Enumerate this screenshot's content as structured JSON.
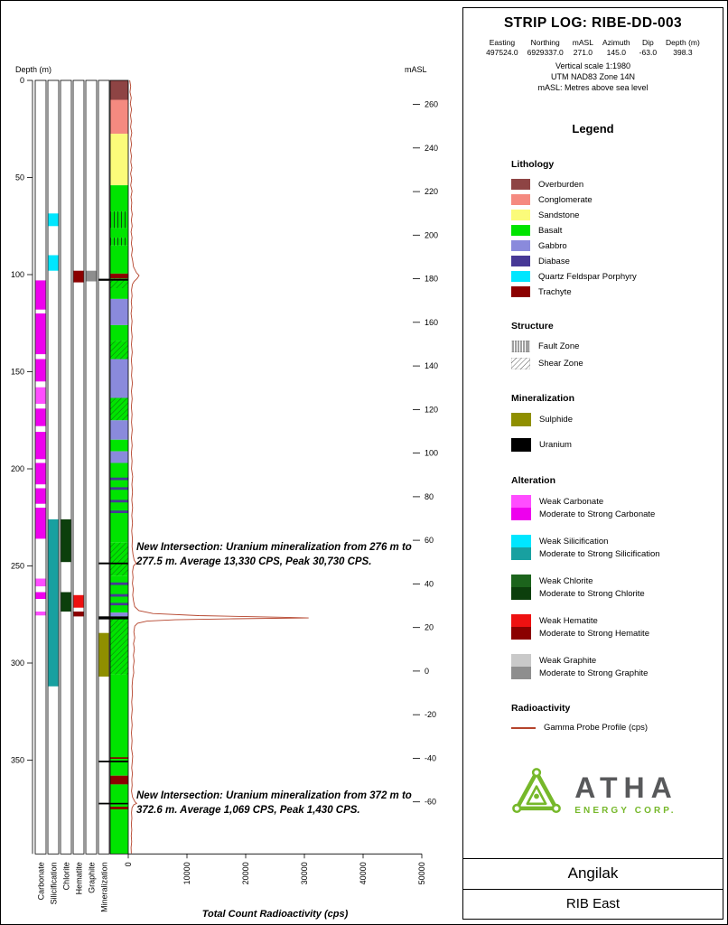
{
  "header": {
    "title": "STRIP LOG: RIBE-DD-003",
    "fields": [
      {
        "label": "Easting",
        "value": "497524.0"
      },
      {
        "label": "Northing",
        "value": "6929337.0"
      },
      {
        "label": "mASL",
        "value": "271.0"
      },
      {
        "label": "Azimuth",
        "value": "145.0"
      },
      {
        "label": "Dip",
        "value": "-63.0"
      },
      {
        "label": "Depth (m)",
        "value": "398.3"
      }
    ],
    "scale_note": "Vertical scale 1:1980",
    "utm_note": "UTM NAD83 Zone 14N",
    "masl_note": "mASL: Metres above sea level"
  },
  "legend": {
    "title": "Legend",
    "sections": {
      "lithology": {
        "heading": "Lithology",
        "items": [
          {
            "label": "Overburden",
            "color": "#8e4444"
          },
          {
            "label": "Conglomerate",
            "color": "#f58a80"
          },
          {
            "label": "Sandstone",
            "color": "#fbfb7a"
          },
          {
            "label": "Basalt",
            "color": "#00e400"
          },
          {
            "label": "Gabbro",
            "color": "#8a8adc"
          },
          {
            "label": "Diabase",
            "color": "#473896"
          },
          {
            "label": "Quartz Feldspar Porphyry",
            "color": "#00e6ff"
          },
          {
            "label": "Trachyte",
            "color": "#8b0000"
          }
        ]
      },
      "structure": {
        "heading": "Structure",
        "items": [
          {
            "label": "Fault Zone",
            "pattern": "fault"
          },
          {
            "label": "Shear Zone",
            "pattern": "shear"
          }
        ]
      },
      "mineralization": {
        "heading": "Mineralization",
        "items": [
          {
            "label": "Sulphide",
            "color": "#8f8f00"
          },
          {
            "label": "Uranium",
            "color": "#000000"
          }
        ]
      },
      "alteration": {
        "heading": "Alteration",
        "pairs": [
          {
            "name": "Carbonate",
            "weak_label": "Weak Carbonate",
            "strong_label": "Moderate to Strong Carbonate",
            "weak_color": "#ff4dff",
            "strong_color": "#ee00ee"
          },
          {
            "name": "Silicification",
            "weak_label": "Weak Silicification",
            "strong_label": "Moderate to Strong Silicification",
            "weak_color": "#00e6ff",
            "strong_color": "#18a0a0"
          },
          {
            "name": "Chlorite",
            "weak_label": "Weak Chlorite",
            "strong_label": "Moderate to Strong Chlorite",
            "weak_color": "#1c641c",
            "strong_color": "#0c3f0c"
          },
          {
            "name": "Hematite",
            "weak_label": "Weak Hematite",
            "strong_label": "Moderate to Strong Hematite",
            "weak_color": "#ee1111",
            "strong_color": "#8b0000"
          },
          {
            "name": "Graphite",
            "weak_label": "Weak Graphite",
            "strong_label": "Moderate to Strong Graphite",
            "weak_color": "#c9c9c9",
            "strong_color": "#8e8e8e"
          }
        ]
      },
      "radioactivity": {
        "heading": "Radioactivity",
        "items": [
          {
            "label": "Gamma Probe Profile (cps)",
            "line_color": "#b5442c"
          }
        ]
      }
    }
  },
  "logo": {
    "name": "ATHA",
    "subtitle": "ENERGY CORP.",
    "green": "#76b82a",
    "dark": "#58595b"
  },
  "footer": {
    "project": "Angilak",
    "area": "RIB East"
  },
  "chart_data": {
    "type": "strip_log",
    "depth_axis": {
      "label": "Depth (m)",
      "ticks": [
        0,
        50,
        100,
        150,
        200,
        250,
        300,
        350
      ],
      "max_depth": 398.3
    },
    "masl_axis": {
      "label": "mASL",
      "ticks": [
        260,
        240,
        220,
        200,
        180,
        160,
        140,
        120,
        100,
        80,
        60,
        40,
        20,
        0,
        -20,
        -40,
        -60
      ],
      "collar_masl": 271.0,
      "vertical_factor": 0.891
    },
    "cps_axis": {
      "label": "Total Count Radioactivity (cps)",
      "ticks": [
        0,
        10000,
        20000,
        30000,
        40000,
        50000
      ],
      "max": 50000
    },
    "columns": [
      "Carbonate",
      "Silicification",
      "Chlorite",
      "Hematite",
      "Graphite",
      "Mineralization"
    ],
    "lithology_intervals": [
      {
        "from": 0,
        "to": 10,
        "unit": "Overburden"
      },
      {
        "from": 10,
        "to": 27.5,
        "unit": "Conglomerate"
      },
      {
        "from": 27.5,
        "to": 54,
        "unit": "Sandstone"
      },
      {
        "from": 54,
        "to": 67.5,
        "unit": "Basalt"
      },
      {
        "from": 67.5,
        "to": 76,
        "unit": "Basalt",
        "structure": "fault"
      },
      {
        "from": 76,
        "to": 81,
        "unit": "Basalt"
      },
      {
        "from": 81,
        "to": 85,
        "unit": "Basalt",
        "structure": "fault"
      },
      {
        "from": 85,
        "to": 99.5,
        "unit": "Basalt"
      },
      {
        "from": 99.5,
        "to": 102,
        "unit": "Trachyte"
      },
      {
        "from": 102,
        "to": 107,
        "unit": "Basalt",
        "structure": "shear"
      },
      {
        "from": 107,
        "to": 112.5,
        "unit": "Basalt"
      },
      {
        "from": 112.5,
        "to": 126,
        "unit": "Gabbro"
      },
      {
        "from": 126,
        "to": 134,
        "unit": "Basalt"
      },
      {
        "from": 134,
        "to": 143.5,
        "unit": "Basalt",
        "structure": "shear"
      },
      {
        "from": 143.5,
        "to": 163.5,
        "unit": "Gabbro"
      },
      {
        "from": 163.5,
        "to": 175,
        "unit": "Basalt",
        "structure": "shear"
      },
      {
        "from": 175,
        "to": 185,
        "unit": "Gabbro"
      },
      {
        "from": 185,
        "to": 191,
        "unit": "Basalt"
      },
      {
        "from": 191,
        "to": 197,
        "unit": "Gabbro"
      },
      {
        "from": 197,
        "to": 238,
        "unit": "Basalt"
      },
      {
        "from": 238,
        "to": 255,
        "unit": "Basalt",
        "structure": "shear"
      },
      {
        "from": 255,
        "to": 274,
        "unit": "Basalt"
      },
      {
        "from": 274,
        "to": 276,
        "unit": "Gabbro"
      },
      {
        "from": 276,
        "to": 306,
        "unit": "Basalt",
        "structure": "shear"
      },
      {
        "from": 306,
        "to": 358,
        "unit": "Basalt"
      },
      {
        "from": 358,
        "to": 362.5,
        "unit": "Trachyte"
      },
      {
        "from": 362.5,
        "to": 398.3,
        "unit": "Basalt"
      }
    ],
    "diabase_bands": [
      {
        "from": 204.5,
        "to": 205.8
      },
      {
        "from": 209.5,
        "to": 210.8
      },
      {
        "from": 216,
        "to": 217.3
      },
      {
        "from": 221.5,
        "to": 222.8
      },
      {
        "from": 258.5,
        "to": 259.8
      },
      {
        "from": 264.5,
        "to": 265.8
      },
      {
        "from": 269,
        "to": 270.3
      }
    ],
    "trachyte_bands": [
      {
        "from": 348.5,
        "to": 349.3
      },
      {
        "from": 374,
        "to": 375.3
      }
    ],
    "uranium_bands": [
      {
        "from": 102.2,
        "to": 103.1
      },
      {
        "from": 248.3,
        "to": 249.1
      },
      {
        "from": 276,
        "to": 277.5
      },
      {
        "from": 350.3,
        "to": 351.1
      },
      {
        "from": 372,
        "to": 372.6
      }
    ],
    "alteration_intervals": {
      "Carbonate": [
        {
          "from": 103,
          "to": 118,
          "grade": "strong"
        },
        {
          "from": 120,
          "to": 141,
          "grade": "strong"
        },
        {
          "from": 143.5,
          "to": 155,
          "grade": "strong"
        },
        {
          "from": 158,
          "to": 166.5,
          "grade": "weak"
        },
        {
          "from": 169,
          "to": 178,
          "grade": "strong"
        },
        {
          "from": 181,
          "to": 195,
          "grade": "strong"
        },
        {
          "from": 197,
          "to": 208,
          "grade": "strong"
        },
        {
          "from": 210,
          "to": 218,
          "grade": "strong"
        },
        {
          "from": 220,
          "to": 236,
          "grade": "strong"
        },
        {
          "from": 256.5,
          "to": 260.5,
          "grade": "weak"
        },
        {
          "from": 263.5,
          "to": 267,
          "grade": "strong"
        },
        {
          "from": 273.5,
          "to": 275.5,
          "grade": "weak"
        }
      ],
      "Silicification": [
        {
          "from": 68.5,
          "to": 75,
          "grade": "weak"
        },
        {
          "from": 90,
          "to": 98,
          "grade": "weak"
        },
        {
          "from": 226,
          "to": 312,
          "grade": "strong"
        }
      ],
      "Chlorite": [
        {
          "from": 226,
          "to": 248,
          "grade": "strong"
        },
        {
          "from": 263.5,
          "to": 273.5,
          "grade": "strong"
        }
      ],
      "Hematite": [
        {
          "from": 98,
          "to": 104,
          "grade": "strong"
        },
        {
          "from": 265,
          "to": 271.5,
          "grade": "weak"
        },
        {
          "from": 273.5,
          "to": 276,
          "grade": "strong"
        }
      ],
      "Graphite": [
        {
          "from": 98,
          "to": 103.5,
          "grade": "strong"
        }
      ]
    },
    "mineralization_intervals": [
      {
        "from": 102.2,
        "to": 103.1,
        "mineral": "Uranium"
      },
      {
        "from": 248.3,
        "to": 249.1,
        "mineral": "Uranium"
      },
      {
        "from": 276,
        "to": 277.5,
        "mineral": "Uranium"
      },
      {
        "from": 284.5,
        "to": 307,
        "mineral": "Sulphide"
      },
      {
        "from": 372,
        "to": 372.6,
        "mineral": "Uranium"
      }
    ],
    "gamma_profile": [
      [
        0,
        250
      ],
      [
        3,
        420
      ],
      [
        6,
        300
      ],
      [
        9,
        500
      ],
      [
        12,
        350
      ],
      [
        15,
        550
      ],
      [
        18,
        380
      ],
      [
        21,
        520
      ],
      [
        24,
        400
      ],
      [
        27,
        600
      ],
      [
        30,
        420
      ],
      [
        33,
        560
      ],
      [
        36,
        380
      ],
      [
        39,
        540
      ],
      [
        42,
        430
      ],
      [
        45,
        620
      ],
      [
        48,
        400
      ],
      [
        51,
        580
      ],
      [
        54,
        420
      ],
      [
        57,
        640
      ],
      [
        60,
        460
      ],
      [
        63,
        600
      ],
      [
        66,
        500
      ],
      [
        69,
        680
      ],
      [
        72,
        520
      ],
      [
        75,
        660
      ],
      [
        78,
        480
      ],
      [
        81,
        640
      ],
      [
        84,
        520
      ],
      [
        87,
        700
      ],
      [
        90,
        560
      ],
      [
        93,
        760
      ],
      [
        96,
        900
      ],
      [
        99,
        1400
      ],
      [
        100.5,
        1850
      ],
      [
        102,
        1500
      ],
      [
        103.5,
        1000
      ],
      [
        105,
        700
      ],
      [
        108,
        560
      ],
      [
        111,
        640
      ],
      [
        114,
        500
      ],
      [
        117,
        620
      ],
      [
        120,
        480
      ],
      [
        124,
        640
      ],
      [
        128,
        520
      ],
      [
        132,
        660
      ],
      [
        136,
        540
      ],
      [
        140,
        680
      ],
      [
        144,
        520
      ],
      [
        148,
        640
      ],
      [
        152,
        560
      ],
      [
        156,
        700
      ],
      [
        160,
        540
      ],
      [
        164,
        660
      ],
      [
        168,
        520
      ],
      [
        172,
        640
      ],
      [
        176,
        560
      ],
      [
        180,
        680
      ],
      [
        184,
        540
      ],
      [
        188,
        660
      ],
      [
        192,
        520
      ],
      [
        196,
        640
      ],
      [
        200,
        560
      ],
      [
        204,
        760
      ],
      [
        208,
        620
      ],
      [
        212,
        720
      ],
      [
        216,
        600
      ],
      [
        220,
        740
      ],
      [
        224,
        600
      ],
      [
        228,
        720
      ],
      [
        232,
        580
      ],
      [
        236,
        700
      ],
      [
        240,
        640
      ],
      [
        244,
        800
      ],
      [
        247,
        1000
      ],
      [
        248.6,
        1350
      ],
      [
        250,
        900
      ],
      [
        253,
        720
      ],
      [
        256,
        820
      ],
      [
        259,
        700
      ],
      [
        262,
        860
      ],
      [
        265,
        760
      ],
      [
        268,
        900
      ],
      [
        271,
        1100
      ],
      [
        273,
        1800
      ],
      [
        274.5,
        4200
      ],
      [
        275.6,
        12000
      ],
      [
        276.4,
        26000
      ],
      [
        276.8,
        30730
      ],
      [
        277.2,
        18000
      ],
      [
        277.7,
        8000
      ],
      [
        278.4,
        3200
      ],
      [
        279.5,
        1600
      ],
      [
        281,
        1100
      ],
      [
        284,
        950
      ],
      [
        287,
        1100
      ],
      [
        290,
        900
      ],
      [
        293,
        1050
      ],
      [
        296,
        880
      ],
      [
        299,
        1000
      ],
      [
        302,
        860
      ],
      [
        305,
        940
      ],
      [
        308,
        760
      ],
      [
        312,
        640
      ],
      [
        316,
        700
      ],
      [
        320,
        580
      ],
      [
        324,
        680
      ],
      [
        328,
        560
      ],
      [
        332,
        660
      ],
      [
        336,
        540
      ],
      [
        340,
        640
      ],
      [
        344,
        560
      ],
      [
        348,
        760
      ],
      [
        351,
        680
      ],
      [
        354,
        580
      ],
      [
        357,
        700
      ],
      [
        360,
        600
      ],
      [
        363,
        660
      ],
      [
        366,
        560
      ],
      [
        369,
        720
      ],
      [
        371.5,
        1150
      ],
      [
        372.3,
        1430
      ],
      [
        373,
        950
      ],
      [
        374.5,
        640
      ],
      [
        377,
        560
      ],
      [
        380,
        620
      ],
      [
        383,
        520
      ],
      [
        386,
        600
      ],
      [
        389,
        500
      ],
      [
        392,
        580
      ],
      [
        395,
        480
      ],
      [
        398,
        520
      ]
    ],
    "annotations": [
      {
        "depth": 276,
        "text": "New Intersection: Uranium mineralization from 276 m to 277.5 m. Average 13,330 CPS, Peak 30,730 CPS."
      },
      {
        "depth": 372,
        "text": "New Intersection: Uranium mineralization from 372 m to 372.6 m. Average 1,069 CPS, Peak 1,430 CPS."
      }
    ]
  }
}
